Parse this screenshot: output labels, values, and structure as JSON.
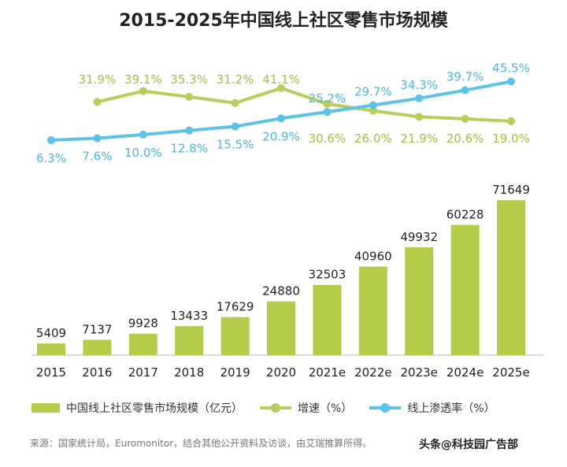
{
  "chart_data": {
    "type": "bar",
    "title": "2015-2025年中国线上社区零售市场规模",
    "categories": [
      "2015",
      "2016",
      "2017",
      "2018",
      "2019",
      "2020",
      "2021e",
      "2022e",
      "2023e",
      "2024e",
      "2025e"
    ],
    "series": [
      {
        "name": "中国线上社区零售市场规模（亿元）",
        "kind": "bar",
        "values": [
          5409,
          7137,
          9928,
          13433,
          17629,
          24880,
          32503,
          40960,
          49932,
          60228,
          71649
        ]
      },
      {
        "name": "增速（%）",
        "kind": "line",
        "values": [
          null,
          31.9,
          39.1,
          35.3,
          31.2,
          41.1,
          30.6,
          26.0,
          21.9,
          20.6,
          19.0
        ],
        "labels": [
          null,
          "31.9%",
          "39.1%",
          "35.3%",
          "31.2%",
          "41.1%",
          "30.6%",
          "26.0%",
          "21.9%",
          "20.6%",
          "19.0%"
        ]
      },
      {
        "name": "线上渗透率（%）",
        "kind": "line",
        "values": [
          6.3,
          7.6,
          10.0,
          12.8,
          15.5,
          20.9,
          25.2,
          29.7,
          34.3,
          39.7,
          45.5
        ],
        "labels": [
          "6.3%",
          "7.6%",
          "10.0%",
          "12.8%",
          "15.5%",
          "20.9%",
          "25.2%",
          "29.7%",
          "34.3%",
          "39.7%",
          "45.5%"
        ]
      }
    ],
    "ylim_bar": [
      0,
      75000
    ],
    "grid": false,
    "legend": "bottom"
  },
  "colors": {
    "bar": "#b5cc4a",
    "growth": "#b8cd5c",
    "growth_label": "#a9be3e",
    "penetration": "#5bc3e8",
    "penetration_label": "#4cb8e3"
  },
  "legend_labels": {
    "bar": "中国线上社区零售市场规模（亿元）",
    "growth": "增速（%）",
    "penetration": "线上渗透率（%）"
  },
  "source": "来源：国家统计局，Euromonitor，结合其他公开资料及访谈，由艾瑞推算所得。",
  "watermark": "头条@科技园广告部"
}
